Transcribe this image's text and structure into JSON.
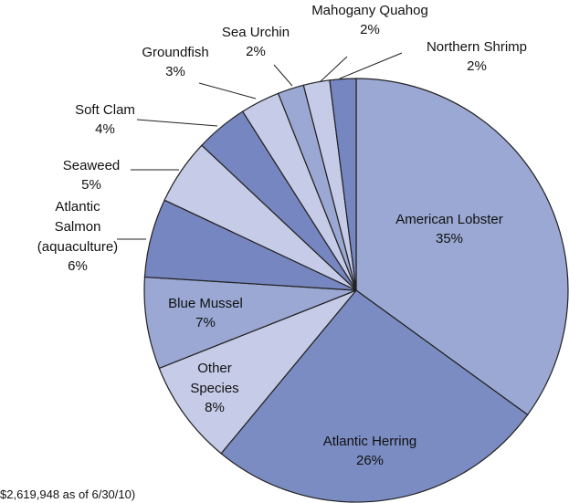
{
  "chart_data": {
    "type": "pie",
    "categories": [
      "American Lobster",
      "Atlantic Herring",
      "Other\nSpecies",
      "Blue Mussel",
      "Atlantic\nSalmon\n(aquaculture)",
      "Seaweed",
      "Soft Clam",
      "Groundfish",
      "Sea Urchin",
      "Mahogany Quahog",
      "Northern Shrimp"
    ],
    "values": [
      35,
      26,
      8,
      7,
      6,
      5,
      4,
      3,
      2,
      2,
      2
    ],
    "value_labels": [
      "35%",
      "26%",
      "8%",
      "7%",
      "6%",
      "5%",
      "4%",
      "3%",
      "2%",
      "2%",
      "2%"
    ],
    "colors": [
      "#9aa8d3",
      "#7b8cc3",
      "#c6cbe7",
      "#9aa8d3",
      "#7686c0",
      "#c6cbe7",
      "#7686c0",
      "#c6cbe7",
      "#9aa8d3",
      "#c6cbe7",
      "#7686c0"
    ],
    "note": "$2,619,948 as of 6/30/10)"
  }
}
